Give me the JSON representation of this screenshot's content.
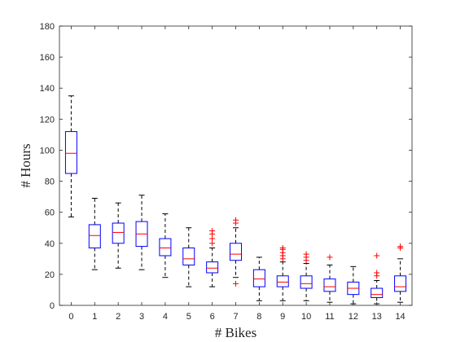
{
  "chart_data": {
    "type": "box",
    "xlabel": "# Bikes",
    "ylabel": "# Hours",
    "ylim": [
      0,
      180
    ],
    "yticks": [
      0,
      20,
      40,
      60,
      80,
      100,
      120,
      140,
      160,
      180
    ],
    "categories": [
      "0",
      "1",
      "2",
      "3",
      "4",
      "5",
      "6",
      "7",
      "8",
      "9",
      "10",
      "11",
      "12",
      "13",
      "14"
    ],
    "grid": false,
    "colors": {
      "box": "#0000ff",
      "median": "#ff0000",
      "whisker": "#000000",
      "outlier": "#ff0000",
      "axis": "#262626"
    },
    "boxes": [
      {
        "x": "0",
        "min": 57,
        "q1": 85,
        "median": 98,
        "q3": 112,
        "max": 135,
        "outliers": []
      },
      {
        "x": "1",
        "min": 23,
        "q1": 37,
        "median": 45,
        "q3": 52,
        "max": 69,
        "outliers": []
      },
      {
        "x": "2",
        "min": 24,
        "q1": 40,
        "median": 47,
        "q3": 53,
        "max": 66,
        "outliers": []
      },
      {
        "x": "3",
        "min": 23,
        "q1": 38,
        "median": 46,
        "q3": 54,
        "max": 71,
        "outliers": []
      },
      {
        "x": "4",
        "min": 18,
        "q1": 32,
        "median": 37,
        "q3": 43,
        "max": 59,
        "outliers": []
      },
      {
        "x": "5",
        "min": 12,
        "q1": 26,
        "median": 30,
        "q3": 37,
        "max": 50,
        "outliers": []
      },
      {
        "x": "6",
        "min": 12,
        "q1": 21,
        "median": 24,
        "q3": 28,
        "max": 37,
        "outliers": [
          40,
          43,
          46,
          48
        ]
      },
      {
        "x": "7",
        "min": 18,
        "q1": 29,
        "median": 33,
        "q3": 40,
        "max": 50,
        "outliers": [
          14,
          53,
          55
        ]
      },
      {
        "x": "8",
        "min": 3,
        "q1": 12,
        "median": 17,
        "q3": 23,
        "max": 31,
        "outliers": []
      },
      {
        "x": "9",
        "min": 3,
        "q1": 12,
        "median": 15,
        "q3": 19,
        "max": 28,
        "outliers": [
          30,
          32,
          34,
          36,
          37
        ]
      },
      {
        "x": "10",
        "min": 3,
        "q1": 11,
        "median": 14,
        "q3": 19,
        "max": 27,
        "outliers": [
          29,
          31,
          33
        ]
      },
      {
        "x": "11",
        "min": 2,
        "q1": 9,
        "median": 12,
        "q3": 17,
        "max": 26,
        "outliers": [
          31
        ]
      },
      {
        "x": "12",
        "min": 1,
        "q1": 7,
        "median": 11,
        "q3": 15,
        "max": 25,
        "outliers": []
      },
      {
        "x": "13",
        "min": 1,
        "q1": 5,
        "median": 7,
        "q3": 11,
        "max": 16,
        "outliers": [
          19,
          21,
          32
        ]
      },
      {
        "x": "14",
        "min": 2,
        "q1": 9,
        "median": 12,
        "q3": 19,
        "max": 30,
        "outliers": [
          37,
          38
        ]
      }
    ]
  }
}
